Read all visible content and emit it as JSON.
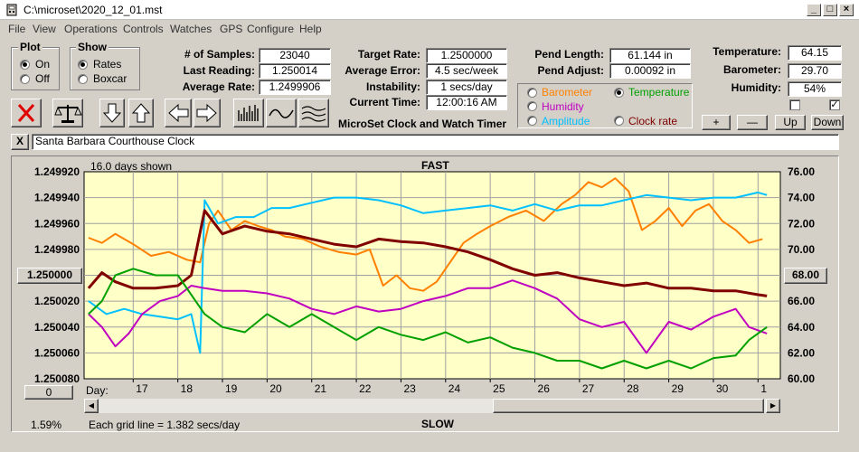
{
  "window": {
    "title": "C:\\microset\\2020_12_01.mst"
  },
  "menu": [
    {
      "label": "File"
    },
    {
      "label": "View"
    },
    {
      "label": "Operations"
    },
    {
      "label": "Controls"
    },
    {
      "label": "Watches"
    },
    {
      "label": "GPS"
    },
    {
      "label": "Configure"
    },
    {
      "label": "Help"
    }
  ],
  "plot_group": {
    "title": "Plot",
    "options": [
      "On",
      "Off"
    ],
    "selected": "On"
  },
  "show_group": {
    "title": "Show",
    "options": [
      "Rates",
      "Boxcar"
    ],
    "selected": "Rates"
  },
  "stats": {
    "samples_label": "# of Samples:",
    "samples": "23040",
    "last_reading_label": "Last Reading:",
    "last_reading": "1.250014",
    "average_rate_label": "Average Rate:",
    "average_rate": "1.2499906",
    "target_rate_label": "Target Rate:",
    "target_rate": "1.2500000",
    "average_error_label": "Average Error:",
    "average_error": "4.5 sec/week",
    "instability_label": "Instability:",
    "instability": "1 secs/day",
    "current_time_label": "Current Time:",
    "current_time": "12:00:16 AM",
    "pend_length_label": "Pend Length:",
    "pend_length": "61.144 in",
    "pend_adjust_label": "Pend Adjust:",
    "pend_adjust": "0.00092 in"
  },
  "app_label": "MicroSet Clock and Watch Timer",
  "sensor_options": [
    {
      "label": "Barometer",
      "color": "#ff8000",
      "selected": false
    },
    {
      "label": "Temperature",
      "color": "#00a000",
      "selected": true
    },
    {
      "label": "Humidity",
      "color": "#c000c0",
      "selected": false
    },
    {
      "label": "Clock rate",
      "color": "#800000",
      "selected": false
    },
    {
      "label": "Amplitude",
      "color": "#00c0ff",
      "selected": false
    }
  ],
  "environment": {
    "temperature_label": "Temperature:",
    "temperature": "64.15",
    "barometer_label": "Barometer:",
    "barometer": "29.70",
    "humidity_label": "Humidity:",
    "humidity": "54%",
    "check1": false,
    "check2": true
  },
  "adjust_buttons": {
    "plus": "+",
    "minus": "—",
    "up": "Up",
    "down": "Down"
  },
  "toolbar": [
    "close-x-icon",
    "balance-scale-icon",
    "arrow-down-icon",
    "arrow-up-icon",
    "arrow-left-icon",
    "arrow-right-icon",
    "bar-graph-icon",
    "wave-icon",
    "multi-wave-icon"
  ],
  "clock_name": {
    "close": "X",
    "value": "Santa Barbara Courthouse Clock"
  },
  "graph": {
    "days_shown": "16.0 days shown",
    "top_label": "FAST",
    "bottom_label": "SLOW",
    "left_center_button": "1.250000",
    "right_center_button": "68.00",
    "bottom_left_button": "0",
    "day_label": "Day:",
    "grid_note": "Each grid line = 1.382 secs/day",
    "status_percent": "1.59%",
    "plot_bg": "#ffffc8"
  },
  "chart_data": {
    "type": "line",
    "xlabel": "Day:",
    "x_ticks": [
      "17",
      "18",
      "19",
      "20",
      "21",
      "22",
      "23",
      "24",
      "25",
      "26",
      "27",
      "28",
      "29",
      "30",
      "1"
    ],
    "y_left": {
      "ticks": [
        "1.249920",
        "1.249940",
        "1.249960",
        "1.249980",
        "1.250000",
        "1.250020",
        "1.250040",
        "1.250060",
        "1.250080"
      ],
      "lim": [
        1.24992,
        1.25008
      ],
      "inverted": true
    },
    "y_right": {
      "ticks": [
        "76.00",
        "74.00",
        "72.00",
        "70.00",
        "68.00",
        "66.00",
        "64.00",
        "62.00",
        "60.00"
      ],
      "lim": [
        60,
        76
      ]
    },
    "grid": true,
    "series": [
      {
        "name": "Barometer",
        "color": "#ff8000",
        "points": [
          [
            16.0,
            1.249971
          ],
          [
            16.3,
            1.249975
          ],
          [
            16.6,
            1.249968
          ],
          [
            17.0,
            1.249976
          ],
          [
            17.4,
            1.249985
          ],
          [
            17.8,
            1.249982
          ],
          [
            18.2,
            1.249988
          ],
          [
            18.5,
            1.24999
          ],
          [
            18.7,
            1.24996
          ],
          [
            18.9,
            1.24995
          ],
          [
            19.2,
            1.249965
          ],
          [
            19.5,
            1.249958
          ],
          [
            19.8,
            1.249962
          ],
          [
            20.1,
            1.249965
          ],
          [
            20.4,
            1.24997
          ],
          [
            20.8,
            1.249972
          ],
          [
            21.2,
            1.249978
          ],
          [
            21.6,
            1.249982
          ],
          [
            22.0,
            1.249984
          ],
          [
            22.3,
            1.24998
          ],
          [
            22.6,
            1.250008
          ],
          [
            22.9,
            1.25
          ],
          [
            23.2,
            1.25001
          ],
          [
            23.5,
            1.250012
          ],
          [
            23.8,
            1.250005
          ],
          [
            24.1,
            1.24999
          ],
          [
            24.4,
            1.249975
          ],
          [
            24.7,
            1.249968
          ],
          [
            25.0,
            1.249962
          ],
          [
            25.4,
            1.249955
          ],
          [
            25.8,
            1.24995
          ],
          [
            26.2,
            1.249958
          ],
          [
            26.6,
            1.249945
          ],
          [
            26.9,
            1.249938
          ],
          [
            27.2,
            1.249928
          ],
          [
            27.5,
            1.249932
          ],
          [
            27.8,
            1.249925
          ],
          [
            28.1,
            1.249935
          ],
          [
            28.4,
            1.249965
          ],
          [
            28.7,
            1.249958
          ],
          [
            29.0,
            1.249948
          ],
          [
            29.3,
            1.249962
          ],
          [
            29.6,
            1.24995
          ],
          [
            29.9,
            1.249945
          ],
          [
            30.2,
            1.249958
          ],
          [
            30.5,
            1.249965
          ],
          [
            30.8,
            1.249975
          ],
          [
            31.1,
            1.249972
          ]
        ]
      },
      {
        "name": "Amplitude",
        "color": "#00c0ff",
        "points": [
          [
            16.0,
            1.25002
          ],
          [
            16.4,
            1.25003
          ],
          [
            16.8,
            1.250026
          ],
          [
            17.2,
            1.25003
          ],
          [
            17.6,
            1.250032
          ],
          [
            18.0,
            1.250034
          ],
          [
            18.3,
            1.25003
          ],
          [
            18.5,
            1.25006
          ],
          [
            18.6,
            1.249942
          ],
          [
            18.9,
            1.24996
          ],
          [
            19.3,
            1.249955
          ],
          [
            19.7,
            1.249955
          ],
          [
            20.1,
            1.249948
          ],
          [
            20.5,
            1.249948
          ],
          [
            21.0,
            1.249944
          ],
          [
            21.5,
            1.24994
          ],
          [
            22.0,
            1.24994
          ],
          [
            22.5,
            1.249942
          ],
          [
            23.0,
            1.249946
          ],
          [
            23.5,
            1.249952
          ],
          [
            24.0,
            1.24995
          ],
          [
            24.5,
            1.249948
          ],
          [
            25.0,
            1.249946
          ],
          [
            25.5,
            1.24995
          ],
          [
            26.0,
            1.249945
          ],
          [
            26.5,
            1.24995
          ],
          [
            27.0,
            1.249946
          ],
          [
            27.5,
            1.249946
          ],
          [
            28.0,
            1.249942
          ],
          [
            28.5,
            1.249938
          ],
          [
            29.0,
            1.24994
          ],
          [
            29.5,
            1.249942
          ],
          [
            30.0,
            1.24994
          ],
          [
            30.5,
            1.24994
          ],
          [
            31.0,
            1.249936
          ],
          [
            31.2,
            1.249938
          ]
        ]
      },
      {
        "name": "Clock rate",
        "color": "#800000",
        "points": [
          [
            16.0,
            1.25001
          ],
          [
            16.3,
            1.249998
          ],
          [
            16.6,
            1.250005
          ],
          [
            17.0,
            1.25001
          ],
          [
            17.5,
            1.25001
          ],
          [
            18.0,
            1.250008
          ],
          [
            18.3,
            1.25
          ],
          [
            18.6,
            1.24995
          ],
          [
            19.0,
            1.249968
          ],
          [
            19.5,
            1.249962
          ],
          [
            20.0,
            1.249966
          ],
          [
            20.5,
            1.249968
          ],
          [
            21.0,
            1.249972
          ],
          [
            21.5,
            1.249976
          ],
          [
            22.0,
            1.249978
          ],
          [
            22.5,
            1.249972
          ],
          [
            23.0,
            1.249974
          ],
          [
            23.5,
            1.249975
          ],
          [
            24.0,
            1.249978
          ],
          [
            24.5,
            1.249982
          ],
          [
            25.0,
            1.249988
          ],
          [
            25.5,
            1.249995
          ],
          [
            26.0,
            1.25
          ],
          [
            26.5,
            1.249998
          ],
          [
            27.0,
            1.250002
          ],
          [
            27.5,
            1.250005
          ],
          [
            28.0,
            1.250008
          ],
          [
            28.5,
            1.250006
          ],
          [
            29.0,
            1.25001
          ],
          [
            29.5,
            1.25001
          ],
          [
            30.0,
            1.250012
          ],
          [
            30.5,
            1.250012
          ],
          [
            31.0,
            1.250015
          ],
          [
            31.2,
            1.250016
          ]
        ]
      },
      {
        "name": "Humidity",
        "color": "#c000c0",
        "points": [
          [
            16.0,
            1.25003
          ],
          [
            16.3,
            1.25004
          ],
          [
            16.6,
            1.250055
          ],
          [
            16.9,
            1.250045
          ],
          [
            17.2,
            1.25003
          ],
          [
            17.6,
            1.25002
          ],
          [
            18.0,
            1.250016
          ],
          [
            18.3,
            1.250008
          ],
          [
            18.6,
            1.25001
          ],
          [
            19.0,
            1.250012
          ],
          [
            19.5,
            1.250012
          ],
          [
            20.0,
            1.250014
          ],
          [
            20.5,
            1.250018
          ],
          [
            21.0,
            1.250026
          ],
          [
            21.5,
            1.25003
          ],
          [
            22.0,
            1.250024
          ],
          [
            22.5,
            1.250028
          ],
          [
            23.0,
            1.250026
          ],
          [
            23.5,
            1.25002
          ],
          [
            24.0,
            1.250016
          ],
          [
            24.5,
            1.25001
          ],
          [
            25.0,
            1.25001
          ],
          [
            25.5,
            1.250004
          ],
          [
            26.0,
            1.25001
          ],
          [
            26.5,
            1.250018
          ],
          [
            27.0,
            1.250034
          ],
          [
            27.5,
            1.25004
          ],
          [
            28.0,
            1.250036
          ],
          [
            28.5,
            1.25006
          ],
          [
            29.0,
            1.250036
          ],
          [
            29.5,
            1.250042
          ],
          [
            30.0,
            1.250032
          ],
          [
            30.5,
            1.250026
          ],
          [
            30.8,
            1.25004
          ],
          [
            31.2,
            1.250045
          ]
        ]
      },
      {
        "name": "Temperature",
        "color": "#00a000",
        "points": [
          [
            16.0,
            1.25003
          ],
          [
            16.3,
            1.25002
          ],
          [
            16.6,
            1.25
          ],
          [
            17.0,
            1.249995
          ],
          [
            17.5,
            1.25
          ],
          [
            18.0,
            1.25
          ],
          [
            18.3,
            1.250015
          ],
          [
            18.6,
            1.25003
          ],
          [
            19.0,
            1.25004
          ],
          [
            19.5,
            1.250044
          ],
          [
            20.0,
            1.25003
          ],
          [
            20.5,
            1.25004
          ],
          [
            21.0,
            1.25003
          ],
          [
            21.5,
            1.25004
          ],
          [
            22.0,
            1.25005
          ],
          [
            22.5,
            1.25004
          ],
          [
            23.0,
            1.250046
          ],
          [
            23.5,
            1.25005
          ],
          [
            24.0,
            1.250044
          ],
          [
            24.5,
            1.250052
          ],
          [
            25.0,
            1.250048
          ],
          [
            25.5,
            1.250056
          ],
          [
            26.0,
            1.25006
          ],
          [
            26.5,
            1.250066
          ],
          [
            27.0,
            1.250066
          ],
          [
            27.5,
            1.250072
          ],
          [
            28.0,
            1.250066
          ],
          [
            28.5,
            1.250072
          ],
          [
            29.0,
            1.250066
          ],
          [
            29.5,
            1.250072
          ],
          [
            30.0,
            1.250064
          ],
          [
            30.5,
            1.250062
          ],
          [
            30.8,
            1.25005
          ],
          [
            31.2,
            1.25004
          ]
        ]
      }
    ]
  }
}
